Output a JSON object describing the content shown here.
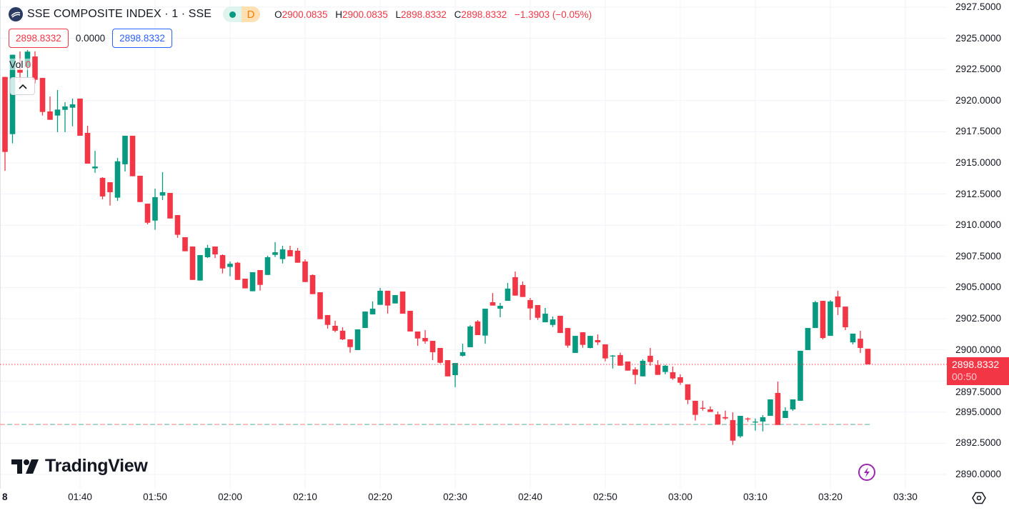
{
  "header": {
    "symbol_title": "SSE COMPOSITE INDEX · 1 · SSE",
    "status_pill": {
      "market_icon": "green-dot-icon",
      "badge": "D"
    },
    "ohlc": {
      "o_label": "O",
      "o": "2900.0835",
      "h_label": "H",
      "h": "2900.0835",
      "l_label": "L",
      "l": "2898.8332",
      "c_label": "C",
      "c": "2898.8332",
      "change": "−1.3903 (−0.05%)"
    },
    "sell_price": "2898.8332",
    "spread": "0.0000",
    "buy_price": "2898.8332",
    "volume_label": "Vol",
    "volume_value": "0"
  },
  "brand": "TradingView",
  "last_price_tag": {
    "price": "2898.8332",
    "countdown": "00:50"
  },
  "colors": {
    "up": "#089981",
    "down": "#f23645",
    "grid": "#f0f3fa",
    "accent": "#2962ff",
    "bolt": "#9c27b0"
  },
  "chart_data": {
    "type": "candlestick",
    "title": "SSE COMPOSITE INDEX · 1 · SSE",
    "interval_min": 1,
    "start_time": "01:30",
    "ylim": [
      2890,
      2927.5
    ],
    "y_ticks": [
      "2927.5000",
      "2925.0000",
      "2922.5000",
      "2920.0000",
      "2917.5000",
      "2915.0000",
      "2912.5000",
      "2910.0000",
      "2907.5000",
      "2905.0000",
      "2902.5000",
      "2900.0000",
      "2897.5000",
      "2895.0000",
      "2892.5000",
      "2890.0000"
    ],
    "x_ticks": [
      {
        "label": "8",
        "minute": 0,
        "bold": true
      },
      {
        "label": "01:40",
        "minute": 10
      },
      {
        "label": "01:50",
        "minute": 20
      },
      {
        "label": "02:00",
        "minute": 30
      },
      {
        "label": "02:10",
        "minute": 40
      },
      {
        "label": "02:20",
        "minute": 50
      },
      {
        "label": "02:30",
        "minute": 60
      },
      {
        "label": "02:40",
        "minute": 70
      },
      {
        "label": "02:50",
        "minute": 80
      },
      {
        "label": "03:00",
        "minute": 90
      },
      {
        "label": "03:10",
        "minute": 100
      },
      {
        "label": "03:20",
        "minute": 110
      },
      {
        "label": "03:30",
        "minute": 120
      }
    ],
    "grid": true,
    "last_price": 2898.8332,
    "reference_line": 2894.01,
    "ohlc_fields": [
      "open",
      "high",
      "low",
      "close"
    ],
    "ohlc": [
      [
        2921.9,
        2921.9,
        2914.37,
        2915.88
      ],
      [
        2917.31,
        2923.68,
        2916.57,
        2923.68
      ],
      [
        2922.49,
        2923.94,
        2921.48,
        2922.24
      ],
      [
        2922.72,
        2924.06,
        2921.88,
        2923.93
      ],
      [
        2923.54,
        2923.96,
        2921.38,
        2921.67
      ],
      [
        2921.82,
        2921.82,
        2918.8,
        2919.09
      ],
      [
        2919.13,
        2920.33,
        2918.46,
        2918.46
      ],
      [
        2918.8,
        2920.85,
        2917.47,
        2919.28
      ],
      [
        2919.26,
        2919.87,
        2917.47,
        2919.53
      ],
      [
        2919.43,
        2920.16,
        2917.94,
        2919.7
      ],
      [
        2920.16,
        2920.16,
        2917.18,
        2917.18
      ],
      [
        2917.41,
        2917.98,
        2914.94,
        2914.94
      ],
      [
        2914.56,
        2915.97,
        2914.21,
        2914.71
      ],
      [
        2913.8,
        2913.85,
        2912.08,
        2912.31
      ],
      [
        2913.45,
        2913.45,
        2911.58,
        2912.65
      ],
      [
        2912.21,
        2915.4,
        2911.96,
        2915.13
      ],
      [
        2914.89,
        2917.18,
        2914.31,
        2917.18
      ],
      [
        2917.18,
        2917.18,
        2913.93,
        2913.93
      ],
      [
        2913.97,
        2913.97,
        2911.86,
        2911.86
      ],
      [
        2911.73,
        2911.73,
        2910.07,
        2910.2
      ],
      [
        2910.37,
        2912.94,
        2909.63,
        2912.25
      ],
      [
        2912.38,
        2914.26,
        2912.02,
        2912.65
      ],
      [
        2912.59,
        2912.59,
        2910.54,
        2910.54
      ],
      [
        2910.81,
        2910.81,
        2908.99,
        2909.23
      ],
      [
        2909.04,
        2909.04,
        2907.91,
        2907.91
      ],
      [
        2908.29,
        2908.29,
        2905.61,
        2905.61
      ],
      [
        2905.56,
        2907.6,
        2905.56,
        2907.6
      ],
      [
        2907.43,
        2908.42,
        2907.37,
        2908.18
      ],
      [
        2908.29,
        2908.29,
        2907.37,
        2907.66
      ],
      [
        2907.6,
        2907.66,
        2906.13,
        2906.53
      ],
      [
        2906.65,
        2907.09,
        2905.9,
        2906.91
      ],
      [
        2906.99,
        2907.05,
        2905.61,
        2905.61
      ],
      [
        2905.71,
        2905.71,
        2904.93,
        2904.93
      ],
      [
        2904.7,
        2906.23,
        2904.7,
        2906.23
      ],
      [
        2906.4,
        2906.4,
        2904.75,
        2905.21
      ],
      [
        2906.01,
        2907.55,
        2906.01,
        2907.43
      ],
      [
        2907.62,
        2908.64,
        2907.45,
        2907.83
      ],
      [
        2907.28,
        2908.35,
        2906.93,
        2908.06
      ],
      [
        2908.0,
        2908.35,
        2907.5,
        2907.5
      ],
      [
        2907.95,
        2908.18,
        2906.99,
        2906.99
      ],
      [
        2907.09,
        2907.26,
        2905.44,
        2905.44
      ],
      [
        2906.0,
        2906.06,
        2904.47,
        2904.47
      ],
      [
        2904.62,
        2904.62,
        2902.46,
        2902.46
      ],
      [
        2902.79,
        2902.79,
        2901.7,
        2902.0
      ],
      [
        2901.93,
        2902.33,
        2901.41,
        2901.53
      ],
      [
        2901.53,
        2901.81,
        2900.78,
        2900.84
      ],
      [
        2900.84,
        2900.84,
        2899.77,
        2900.22
      ],
      [
        2899.98,
        2901.64,
        2899.98,
        2901.64
      ],
      [
        2901.75,
        2903.07,
        2901.75,
        2903.07
      ],
      [
        2902.84,
        2903.88,
        2902.84,
        2903.3
      ],
      [
        2903.61,
        2904.97,
        2903.61,
        2904.74
      ],
      [
        2904.74,
        2904.74,
        2902.9,
        2903.55
      ],
      [
        2903.72,
        2904.39,
        2903.72,
        2904.39
      ],
      [
        2904.68,
        2904.68,
        2902.9,
        2902.9
      ],
      [
        2903.13,
        2903.13,
        2901.47,
        2901.47
      ],
      [
        2901.47,
        2901.47,
        2900.32,
        2900.91
      ],
      [
        2900.95,
        2901.58,
        2900.49,
        2900.68
      ],
      [
        2900.72,
        2900.72,
        2899.17,
        2899.81
      ],
      [
        2900.15,
        2900.15,
        2898.9,
        2898.96
      ],
      [
        2899.17,
        2899.17,
        2897.87,
        2897.87
      ],
      [
        2897.97,
        2898.94,
        2897.0,
        2898.94
      ],
      [
        2899.52,
        2900.49,
        2899.46,
        2899.81
      ],
      [
        2900.21,
        2901.98,
        2900.21,
        2901.87
      ],
      [
        2902.27,
        2902.39,
        2901.18,
        2901.18
      ],
      [
        2901.14,
        2903.3,
        2900.49,
        2903.3
      ],
      [
        2903.82,
        2904.56,
        2903.55,
        2903.55
      ],
      [
        2903.3,
        2903.76,
        2902.61,
        2903.53
      ],
      [
        2903.93,
        2905.37,
        2903.93,
        2904.91
      ],
      [
        2905.83,
        2906.28,
        2904.35,
        2904.35
      ],
      [
        2905.2,
        2905.48,
        2904.24,
        2904.24
      ],
      [
        2903.99,
        2904.16,
        2902.4,
        2903.32
      ],
      [
        2903.59,
        2903.59,
        2902.4,
        2902.57
      ],
      [
        2902.21,
        2903.36,
        2902.21,
        2902.9
      ],
      [
        2902.0,
        2902.67,
        2901.83,
        2902.44
      ],
      [
        2902.73,
        2902.73,
        2901.35,
        2901.35
      ],
      [
        2901.75,
        2901.75,
        2900.17,
        2900.34
      ],
      [
        2899.75,
        2901.12,
        2899.75,
        2901.12
      ],
      [
        2901.41,
        2901.41,
        2900.17,
        2900.4
      ],
      [
        2900.15,
        2901.12,
        2900.11,
        2901.12
      ],
      [
        2900.78,
        2901.24,
        2900.38,
        2900.6
      ],
      [
        2900.44,
        2900.44,
        2899.08,
        2899.31
      ],
      [
        2899.48,
        2899.58,
        2898.5,
        2899.54
      ],
      [
        2899.58,
        2899.77,
        2898.73,
        2898.73
      ],
      [
        2899.06,
        2899.06,
        2898.33,
        2898.33
      ],
      [
        2898.43,
        2898.6,
        2897.24,
        2897.99
      ],
      [
        2897.87,
        2899.23,
        2897.87,
        2899.12
      ],
      [
        2899.52,
        2900.15,
        2898.73,
        2899.02
      ],
      [
        2898.79,
        2899.17,
        2897.99,
        2897.99
      ],
      [
        2898.22,
        2898.79,
        2898.04,
        2898.72
      ],
      [
        2898.2,
        2898.66,
        2897.59,
        2897.7
      ],
      [
        2897.8,
        2898.03,
        2897.19,
        2897.36
      ],
      [
        2897.23,
        2897.23,
        2895.64,
        2895.98
      ],
      [
        2895.91,
        2895.91,
        2894.32,
        2894.78
      ],
      [
        2895.35,
        2895.91,
        2895.12,
        2895.29
      ],
      [
        2895.22,
        2895.45,
        2895.01,
        2895.01
      ],
      [
        2894.82,
        2895.05,
        2894.01,
        2894.01
      ],
      [
        2894.6,
        2895.12,
        2894.38,
        2894.49
      ],
      [
        2894.36,
        2894.99,
        2892.37,
        2892.71
      ],
      [
        2893.06,
        2894.7,
        2892.94,
        2894.7
      ],
      [
        2894.49,
        2894.57,
        2894.24,
        2894.42
      ],
      [
        2894.19,
        2894.49,
        2893.52,
        2894.24
      ],
      [
        2894.24,
        2894.76,
        2893.46,
        2894.59
      ],
      [
        2894.7,
        2896.02,
        2894.7,
        2896.02
      ],
      [
        2896.54,
        2897.45,
        2893.97,
        2893.97
      ],
      [
        2894.53,
        2895.39,
        2894.53,
        2895.1
      ],
      [
        2895.22,
        2896.02,
        2895.1,
        2896.02
      ],
      [
        2895.91,
        2899.92,
        2895.91,
        2899.92
      ],
      [
        2899.98,
        2901.75,
        2899.98,
        2901.75
      ],
      [
        2901.75,
        2903.93,
        2901.75,
        2903.82
      ],
      [
        2903.93,
        2903.93,
        2900.84,
        2900.95
      ],
      [
        2901.12,
        2903.99,
        2901.12,
        2903.88
      ],
      [
        2904.28,
        2904.74,
        2902.79,
        2903.42
      ],
      [
        2903.47,
        2903.47,
        2901.58,
        2901.81
      ],
      [
        2900.6,
        2901.3,
        2900.44,
        2901.3
      ],
      [
        2900.89,
        2901.53,
        2899.75,
        2900.15
      ],
      [
        2900.0835,
        2900.0835,
        2898.8332,
        2898.8332
      ]
    ]
  }
}
